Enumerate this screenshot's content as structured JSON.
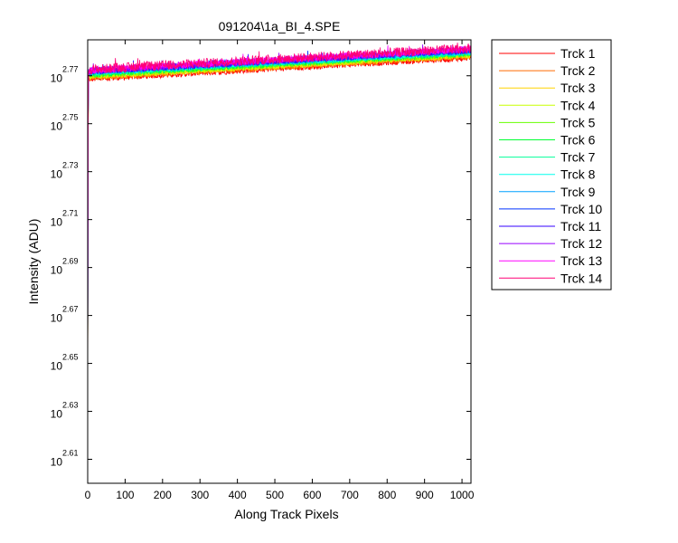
{
  "chart_data": {
    "type": "line",
    "title": "091204\\1a_BI_4.SPE",
    "xlabel": "Along Track Pixels",
    "ylabel": "Intensity (ADU)",
    "xlim": [
      0,
      1024
    ],
    "ylim_exponent": [
      2.6,
      2.785
    ],
    "y_scale": "log",
    "grid": false,
    "legend_position": "outside-right",
    "x_ticks": [
      0,
      100,
      200,
      300,
      400,
      500,
      600,
      700,
      800,
      900,
      1000
    ],
    "y_ticks": [
      {
        "base": "10",
        "exp": "2.61"
      },
      {
        "base": "10",
        "exp": "2.63"
      },
      {
        "base": "10",
        "exp": "2.65"
      },
      {
        "base": "10",
        "exp": "2.67"
      },
      {
        "base": "10",
        "exp": "2.69"
      },
      {
        "base": "10",
        "exp": "2.71"
      },
      {
        "base": "10",
        "exp": "2.73"
      },
      {
        "base": "10",
        "exp": "2.75"
      },
      {
        "base": "10",
        "exp": "2.77"
      }
    ],
    "series": [
      {
        "name": "Trck 1",
        "color": "#ff0000",
        "start_exp": 2.628,
        "level_start_exp": 2.7685,
        "level_end_exp": 2.7775,
        "noise": 0.0012
      },
      {
        "name": "Trck 2",
        "color": "#ff6a00",
        "start_exp": 2.63,
        "level_start_exp": 2.769,
        "level_end_exp": 2.778,
        "noise": 0.0012
      },
      {
        "name": "Trck 3",
        "color": "#ffd400",
        "start_exp": 2.632,
        "level_start_exp": 2.7695,
        "level_end_exp": 2.7784,
        "noise": 0.0012
      },
      {
        "name": "Trck 4",
        "color": "#c8ff00",
        "start_exp": 2.633,
        "level_start_exp": 2.7698,
        "level_end_exp": 2.7787,
        "noise": 0.0012
      },
      {
        "name": "Trck 5",
        "color": "#66ff00",
        "start_exp": 2.634,
        "level_start_exp": 2.7702,
        "level_end_exp": 2.779,
        "noise": 0.0012
      },
      {
        "name": "Trck 6",
        "color": "#00ff33",
        "start_exp": 2.635,
        "level_start_exp": 2.7705,
        "level_end_exp": 2.7793,
        "noise": 0.0012
      },
      {
        "name": "Trck 7",
        "color": "#00ff99",
        "start_exp": 2.636,
        "level_start_exp": 2.7708,
        "level_end_exp": 2.7796,
        "noise": 0.0012
      },
      {
        "name": "Trck 8",
        "color": "#00ffee",
        "start_exp": 2.637,
        "level_start_exp": 2.7711,
        "level_end_exp": 2.7799,
        "noise": 0.0012
      },
      {
        "name": "Trck 9",
        "color": "#00a0ff",
        "start_exp": 2.638,
        "level_start_exp": 2.7714,
        "level_end_exp": 2.7802,
        "noise": 0.0013
      },
      {
        "name": "Trck 10",
        "color": "#0033ff",
        "start_exp": 2.638,
        "level_start_exp": 2.7717,
        "level_end_exp": 2.7805,
        "noise": 0.0013
      },
      {
        "name": "Trck 11",
        "color": "#3300ff",
        "start_exp": 2.637,
        "level_start_exp": 2.7719,
        "level_end_exp": 2.7808,
        "noise": 0.0014
      },
      {
        "name": "Trck 12",
        "color": "#9900ff",
        "start_exp": 2.636,
        "level_start_exp": 2.7721,
        "level_end_exp": 2.781,
        "noise": 0.0014
      },
      {
        "name": "Trck 13",
        "color": "#ff00ff",
        "start_exp": 2.635,
        "level_start_exp": 2.7723,
        "level_end_exp": 2.7812,
        "noise": 0.0015
      },
      {
        "name": "Trck 14",
        "color": "#ff0077",
        "start_exp": 2.634,
        "level_start_exp": 2.7726,
        "level_end_exp": 2.7815,
        "noise": 0.002
      }
    ]
  }
}
